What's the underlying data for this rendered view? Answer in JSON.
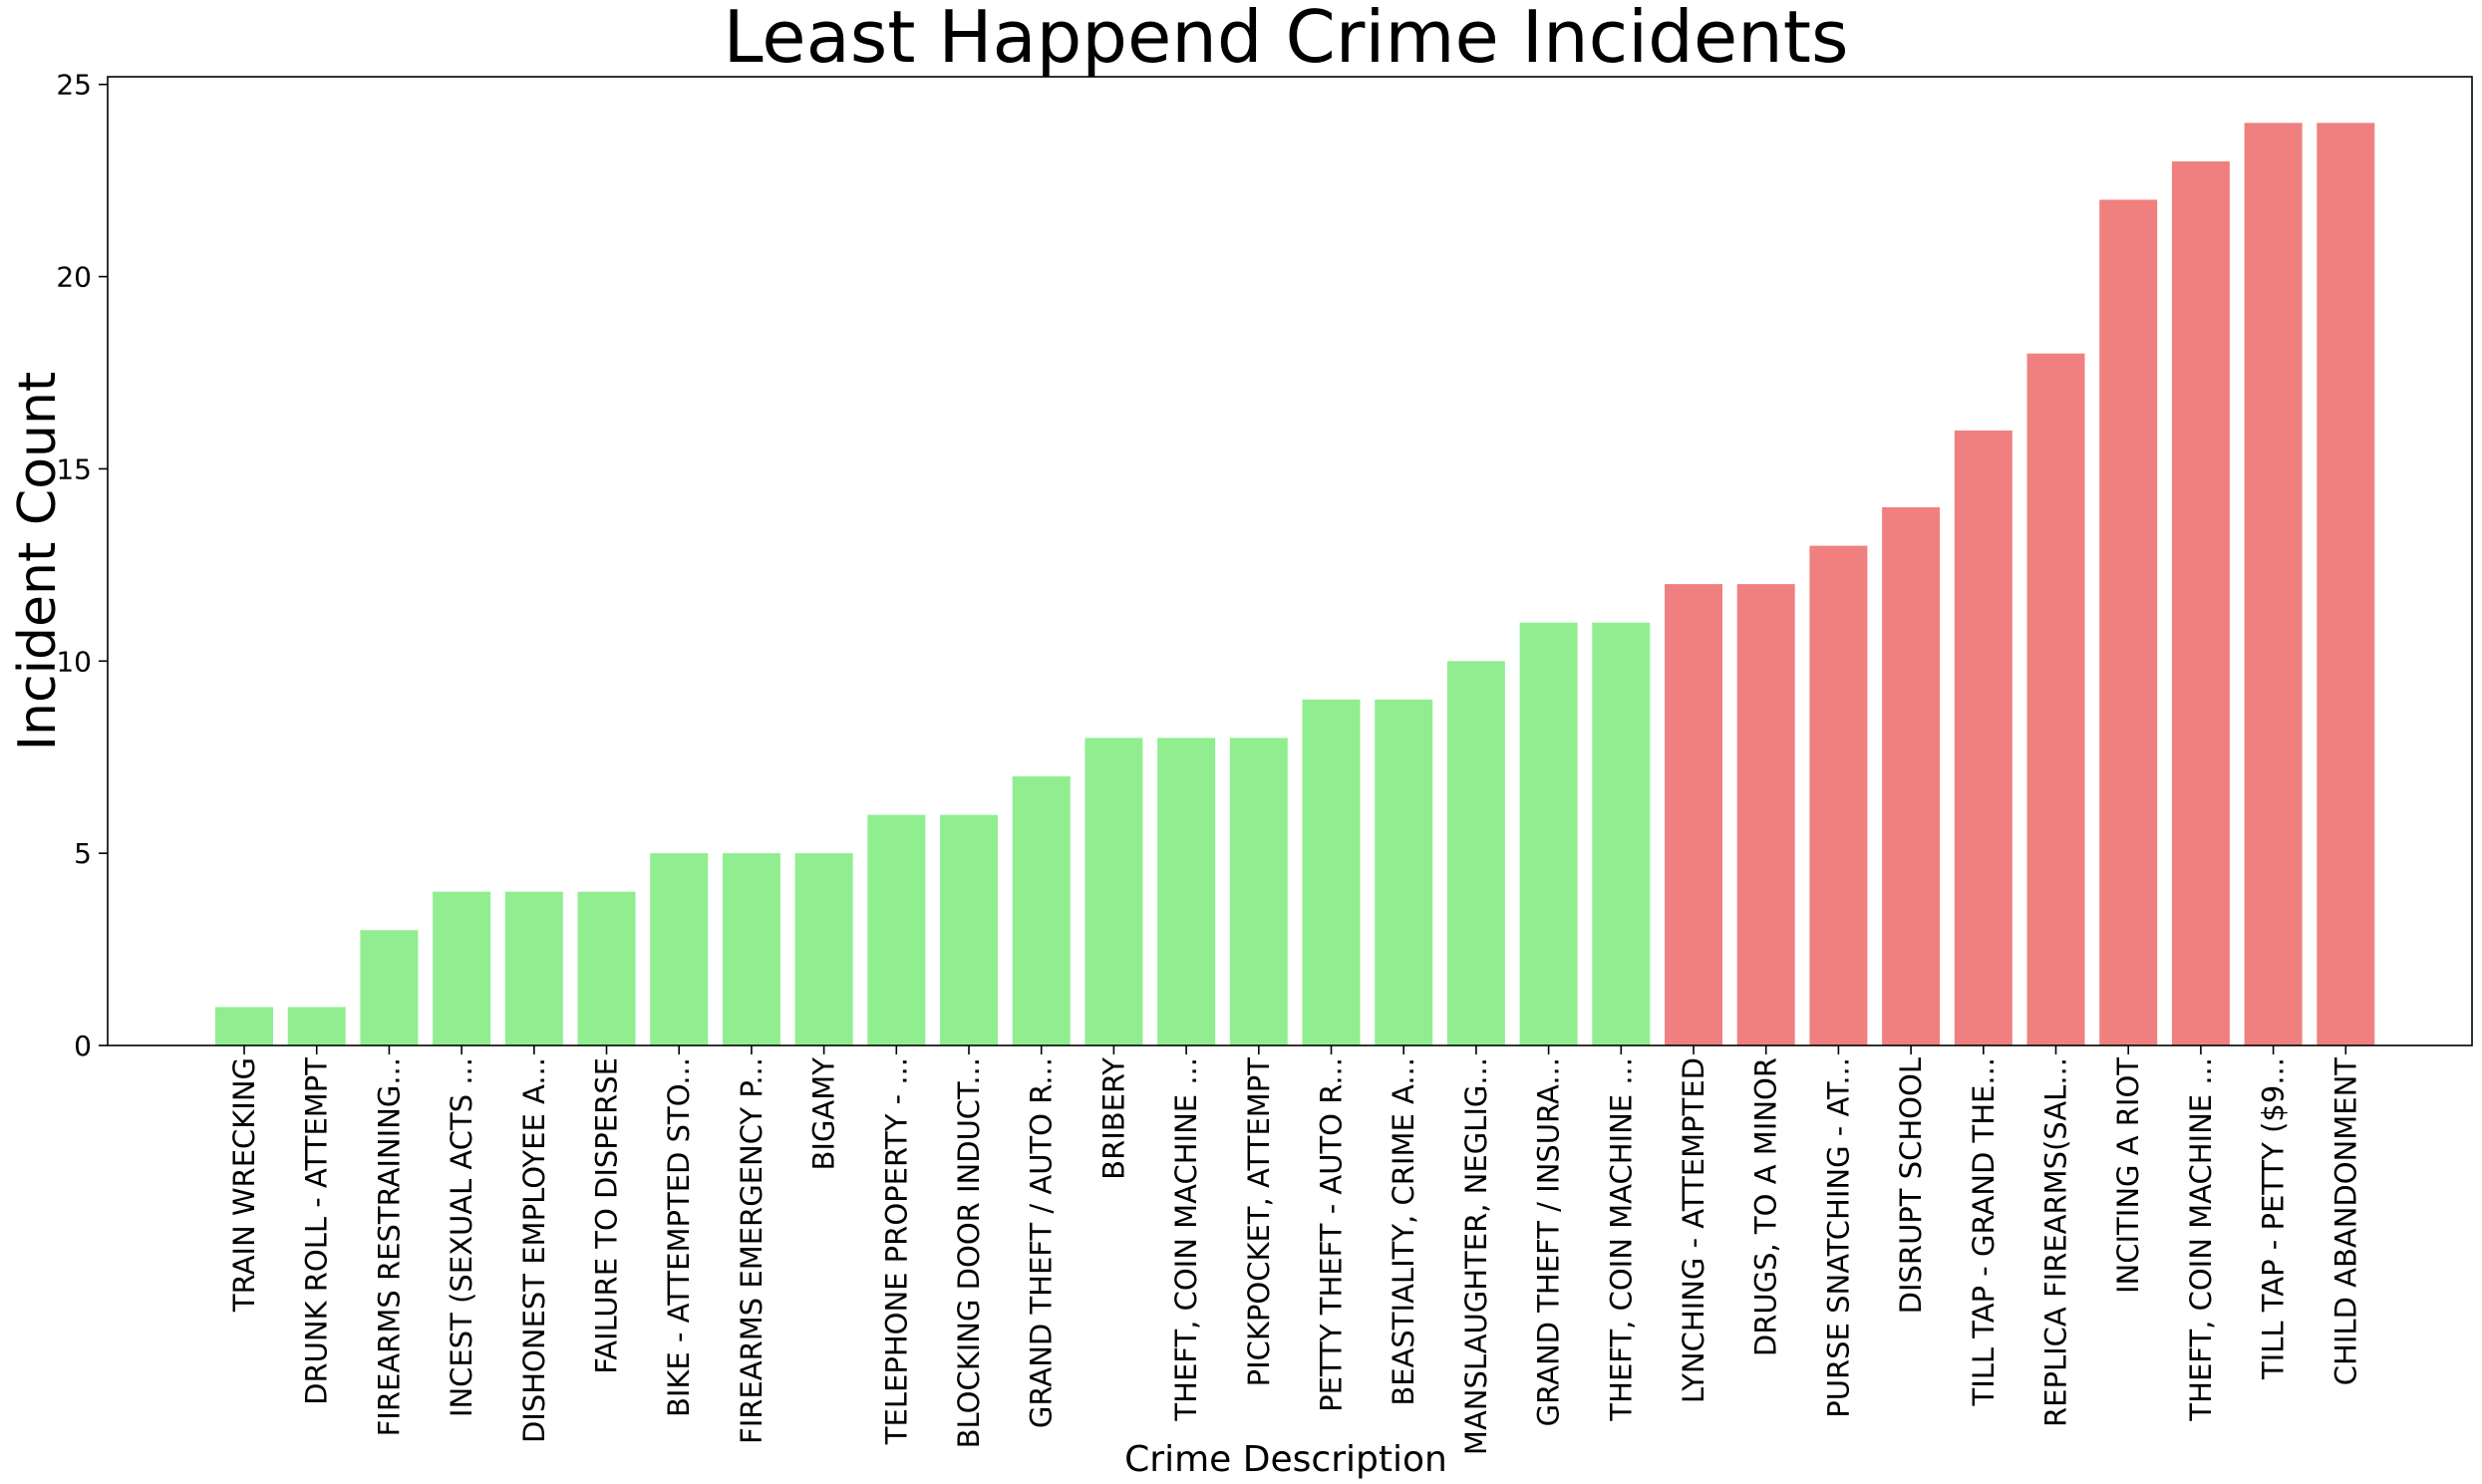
{
  "chart_data": {
    "type": "bar",
    "title": "Least Happend Crime Incidents",
    "xlabel": "Crime Description",
    "ylabel": "Incident Count",
    "ylim": [
      0,
      25.2
    ],
    "yticks": [
      0,
      5,
      10,
      15,
      20,
      25
    ],
    "grid": false,
    "colors": {
      "low": "#90ee90",
      "high": "#f08080"
    },
    "categories": [
      "TRAIN WRECKING",
      "DRUNK ROLL - ATTEMPT",
      "FIREARMS RESTRAINING...",
      "INCEST (SEXUAL ACTS ...",
      "DISHONEST EMPLOYEE A...",
      "FAILURE TO DISPERSE",
      "BIKE - ATTEMPTED STO...",
      "FIREARMS EMERGENCY P...",
      "BIGAMY",
      "TELEPHONE PROPERTY - ...",
      "BLOCKING DOOR INDUCT...",
      "GRAND THEFT / AUTO R...",
      "BRIBERY",
      "THEFT, COIN MACHINE ...",
      "PICKPOCKET, ATTEMPT",
      "PETTY THEFT - AUTO R...",
      "BEASTIALITY, CRIME A...",
      "MANSLAUGHTER, NEGLIG...",
      "GRAND THEFT / INSURA...",
      "THEFT, COIN MACHINE ...",
      "LYNCHING - ATTEMPTED",
      "DRUGS, TO A MINOR",
      "PURSE SNATCHING - AT...",
      "DISRUPT SCHOOL",
      "TILL TAP - GRAND THE...",
      "REPLICA FIREARMS(SAL...",
      "INCITING A RIOT",
      "THEFT, COIN MACHINE ...",
      "TILL TAP - PETTY ($9...",
      "CHILD ABANDONMENT"
    ],
    "values": [
      1,
      1,
      3,
      4,
      4,
      4,
      5,
      5,
      5,
      6,
      6,
      7,
      8,
      8,
      8,
      9,
      9,
      10,
      11,
      11,
      12,
      12,
      13,
      14,
      16,
      18,
      22,
      23,
      24,
      24
    ],
    "bar_color_group": [
      "low",
      "low",
      "low",
      "low",
      "low",
      "low",
      "low",
      "low",
      "low",
      "low",
      "low",
      "low",
      "low",
      "low",
      "low",
      "low",
      "low",
      "low",
      "low",
      "low",
      "high",
      "high",
      "high",
      "high",
      "high",
      "high",
      "high",
      "high",
      "high",
      "high"
    ]
  }
}
